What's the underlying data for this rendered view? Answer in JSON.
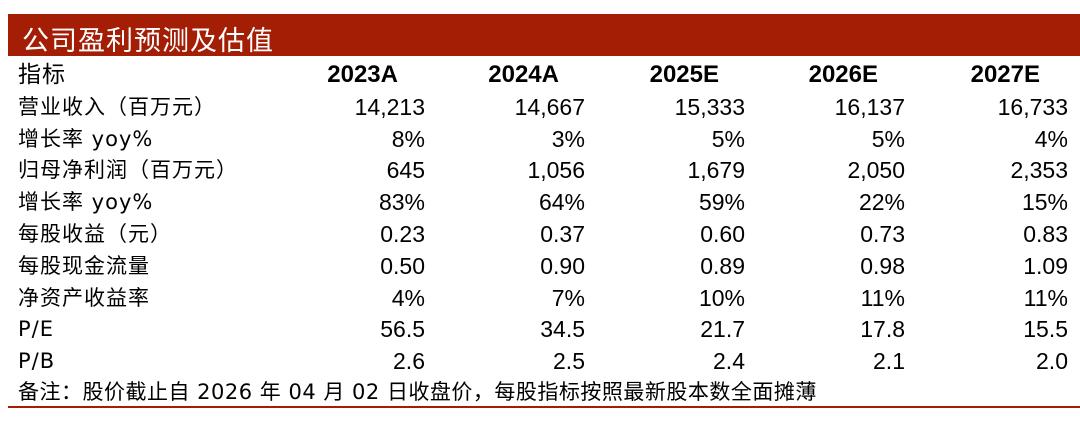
{
  "header": {
    "title": "公司盈利预测及估值"
  },
  "table": {
    "columns": [
      "指标",
      "2023A",
      "2024A",
      "2025E",
      "2026E",
      "2027E"
    ],
    "rows": [
      [
        "营业收入（百万元）",
        "14,213",
        "14,667",
        "15,333",
        "16,137",
        "16,733"
      ],
      [
        "增长率 yoy%",
        "8%",
        "3%",
        "5%",
        "5%",
        "4%"
      ],
      [
        "归母净利润（百万元）",
        "645",
        "1,056",
        "1,679",
        "2,050",
        "2,353"
      ],
      [
        "增长率 yoy%",
        "83%",
        "64%",
        "59%",
        "22%",
        "15%"
      ],
      [
        "每股收益（元）",
        "0.23",
        "0.37",
        "0.60",
        "0.73",
        "0.83"
      ],
      [
        "每股现金流量",
        "0.50",
        "0.90",
        "0.89",
        "0.98",
        "1.09"
      ],
      [
        "净资产收益率",
        "4%",
        "7%",
        "10%",
        "11%",
        "11%"
      ],
      [
        "P/E",
        "56.5",
        "34.5",
        "21.7",
        "17.8",
        "15.5"
      ],
      [
        "P/B",
        "2.6",
        "2.5",
        "2.4",
        "2.1",
        "2.0"
      ]
    ],
    "note": "备注：股价截止自 2026 年 04 月 02 日收盘价，每股指标按照最新股本数全面摊薄"
  }
}
